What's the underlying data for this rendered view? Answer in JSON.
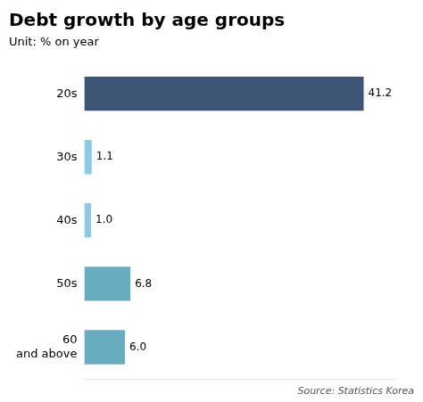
{
  "chart_data": {
    "type": "bar",
    "orientation": "horizontal",
    "title": "Debt growth by age groups",
    "subtitle": "Unit: % on year",
    "source": "Source: Statistics Korea",
    "categories": [
      "20s",
      "30s",
      "40s",
      "50s",
      "60\nand above"
    ],
    "values": [
      41.2,
      1.1,
      1.0,
      6.8,
      6.0
    ],
    "value_labels": [
      "41.2",
      "1.1",
      "1.0",
      "6.8",
      "6.0"
    ],
    "colors": [
      "#3d5475",
      "#8ecae6",
      "#8ecae6",
      "#6aacbf",
      "#6aacbf"
    ],
    "xlim": [
      0,
      46
    ],
    "grid": false,
    "data_labels": true,
    "tick_labels": "y"
  }
}
